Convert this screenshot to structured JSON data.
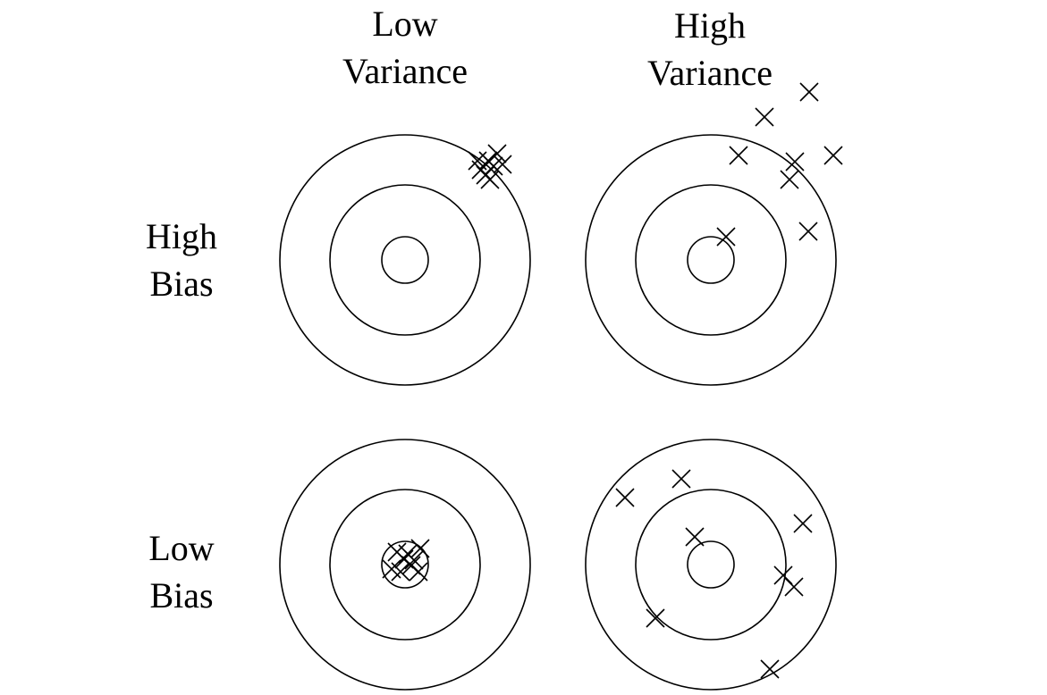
{
  "columns": {
    "low_variance": {
      "line1": "Low",
      "line2": "Variance"
    },
    "high_variance": {
      "line1": "High",
      "line2": "Variance"
    }
  },
  "rows": {
    "high_bias": {
      "line1": "High",
      "line2": "Bias"
    },
    "low_bias": {
      "line1": "Low",
      "line2": "Bias"
    }
  },
  "colors": {
    "stroke": "#000000",
    "background": "#ffffff"
  },
  "targets": [
    {
      "name": "target-high-bias-low-variance",
      "bias": "high",
      "variance": "low"
    },
    {
      "name": "target-high-bias-high-variance",
      "bias": "high",
      "variance": "high"
    },
    {
      "name": "target-low-bias-low-variance",
      "bias": "low",
      "variance": "low"
    },
    {
      "name": "target-low-bias-high-variance",
      "bias": "low",
      "variance": "high"
    }
  ]
}
